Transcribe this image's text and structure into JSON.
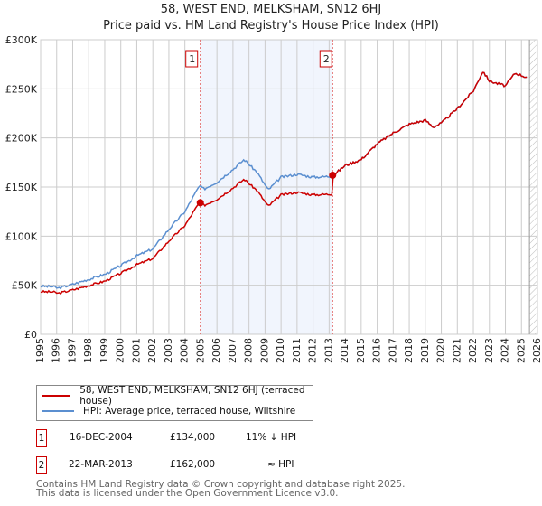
{
  "header": {
    "title": "58, WEST END, MELKSHAM, SN12 6HJ",
    "subtitle": "Price paid vs. HM Land Registry's House Price Index (HPI)"
  },
  "chart_data": {
    "type": "line",
    "title": "58, WEST END, MELKSHAM, SN12 6HJ",
    "subtitle": "Price paid vs. HM Land Registry's House Price Index (HPI)",
    "xlim": [
      1995,
      2026
    ],
    "ylim": [
      0,
      300000
    ],
    "x_ticks": [
      "1995",
      "1996",
      "1997",
      "1998",
      "1999",
      "2000",
      "2001",
      "2002",
      "2003",
      "2004",
      "2005",
      "2006",
      "2007",
      "2008",
      "2009",
      "2010",
      "2011",
      "2012",
      "2013",
      "2014",
      "2015",
      "2016",
      "2017",
      "2018",
      "2019",
      "2020",
      "2021",
      "2022",
      "2023",
      "2024",
      "2025",
      "2026"
    ],
    "y_ticks": [
      {
        "v": 0,
        "label": "£0"
      },
      {
        "v": 50000,
        "label": "£50K"
      },
      {
        "v": 100000,
        "label": "£100K"
      },
      {
        "v": 150000,
        "label": "£150K"
      },
      {
        "v": 200000,
        "label": "£200K"
      },
      {
        "v": 250000,
        "label": "£250K"
      },
      {
        "v": 300000,
        "label": "£300K"
      }
    ],
    "grid": true,
    "series": [
      {
        "name": "HPI: Average price, terraced house, Wiltshire",
        "color": "#5b8fd0",
        "x": [
          1995,
          1995.8,
          1996.1,
          1997,
          1998,
          1999,
          2000,
          2001,
          2002,
          2003,
          2004,
          2004.9,
          2005.2,
          2006,
          2007,
          2007.7,
          2008.5,
          2009.2,
          2010,
          2011,
          2012,
          2013.2,
          2014,
          2015,
          2016,
          2017,
          2018,
          2019,
          2019.5,
          2020,
          2021,
          2022,
          2022.6,
          2023,
          2024,
          2024.6,
          2025.3
        ],
        "y": [
          49000,
          48500,
          47000,
          51000,
          56000,
          61000,
          70000,
          80000,
          87000,
          107000,
          125000,
          151000,
          148000,
          155000,
          168000,
          178000,
          165000,
          147000,
          160000,
          163000,
          160000,
          161000,
          172000,
          178000,
          194000,
          205000,
          214000,
          218000,
          211000,
          215000,
          230000,
          248000,
          268000,
          258000,
          253000,
          266000,
          262000
        ]
      },
      {
        "name": "58, WEST END, MELKSHAM, SN12 6HJ (terraced house)",
        "color": "#cc0000"
      }
    ],
    "sales": [
      {
        "id": "1",
        "x": 2004.96,
        "y": 134000
      },
      {
        "id": "2",
        "x": 2013.22,
        "y": 162000
      }
    ],
    "forecast_from": 2025.5
  },
  "legend": {
    "red": "58, WEST END, MELKSHAM, SN12 6HJ (terraced house)",
    "blue": "HPI: Average price, terraced house, Wiltshire"
  },
  "transactions": [
    {
      "n": "1",
      "date": "16-DEC-2004",
      "price": "£134,000",
      "rel": "11% ↓ HPI"
    },
    {
      "n": "2",
      "date": "22-MAR-2013",
      "price": "£162,000",
      "rel": "≈ HPI"
    }
  ],
  "footer": {
    "line1": "Contains HM Land Registry data © Crown copyright and database right 2025.",
    "line2": "This data is licensed under the Open Government Licence v3.0."
  }
}
